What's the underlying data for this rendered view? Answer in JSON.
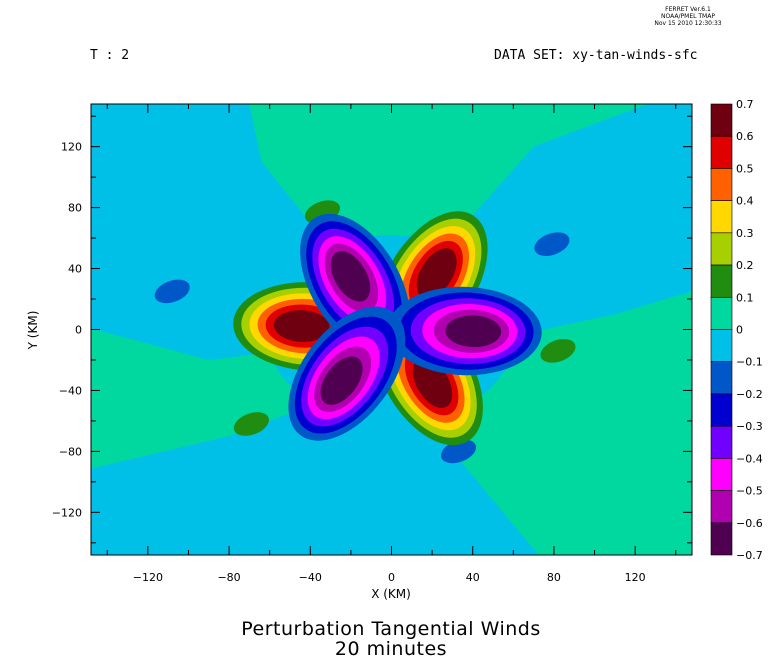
{
  "stamp": {
    "line1": "FERRET Ver.6.1",
    "line2": "NOAA/PMEL TMAP",
    "line3": "Nov 15 2010 12:30:33"
  },
  "header": {
    "time_label": "T : 2",
    "dataset_label": "DATA SET: xy-tan-winds-sfc"
  },
  "titles": {
    "line1": "Perturbation Tangential Winds",
    "line2": "20 minutes"
  },
  "colors": {
    "background_positive": "#00d8a0",
    "background_negative": "#00c0e8"
  },
  "chart_data": {
    "type": "heatmap",
    "xlabel": "X (KM)",
    "ylabel": "Y (KM)",
    "xlim": [
      -148,
      148
    ],
    "ylim": [
      -148,
      148
    ],
    "xticks": [
      -120,
      -80,
      -40,
      0,
      40,
      80,
      120
    ],
    "yticks": [
      120,
      80,
      40,
      0,
      -40,
      -80,
      -120
    ],
    "xtick_labels": [
      "−120",
      "−80",
      "−40",
      "0",
      "40",
      "80",
      "120"
    ],
    "ytick_labels": [
      "120",
      "80",
      "40",
      "0",
      "−40",
      "−80",
      "−120"
    ],
    "colorbar": {
      "levels": [
        0.7,
        0.6,
        0.5,
        0.4,
        0.3,
        0.2,
        0.1,
        0,
        -0.1,
        -0.2,
        -0.3,
        -0.4,
        -0.5,
        -0.6,
        -0.7
      ],
      "labels": [
        "0.7",
        "0.6",
        "0.5",
        "0.4",
        "0.3",
        "0.2",
        "0.1",
        "0",
        "−0.1",
        "−0.2",
        "−0.3",
        "−0.4",
        "−0.5",
        "−0.6",
        "−0.7"
      ],
      "colors": [
        "#6e0010",
        "#e00000",
        "#ff6000",
        "#ffd800",
        "#a8d000",
        "#208c10",
        "#00d8a0",
        "#00c0e8",
        "#0058c8",
        "#0000d0",
        "#7000ff",
        "#ff00ff",
        "#b000b0",
        "#500050"
      ]
    },
    "lobes": [
      {
        "x": 20,
        "y": 32,
        "peak": 0.7
      },
      {
        "x": -40,
        "y": 2,
        "peak": 0.7
      },
      {
        "x": 18,
        "y": -30,
        "peak": 0.7
      },
      {
        "x": -18,
        "y": 30,
        "peak": -0.7
      },
      {
        "x": 36,
        "y": -1,
        "peak": -0.7
      },
      {
        "x": -22,
        "y": -29,
        "peak": -0.7
      }
    ],
    "small_features": [
      {
        "x": -34,
        "y": 77,
        "value": 0.15
      },
      {
        "x": -69,
        "y": -62,
        "value": 0.15
      },
      {
        "x": 82,
        "y": -14,
        "value": 0.15
      },
      {
        "x": -108,
        "y": 25,
        "value": -0.15
      },
      {
        "x": 79,
        "y": 56,
        "value": -0.15
      },
      {
        "x": 33,
        "y": -80,
        "value": -0.15
      }
    ]
  }
}
